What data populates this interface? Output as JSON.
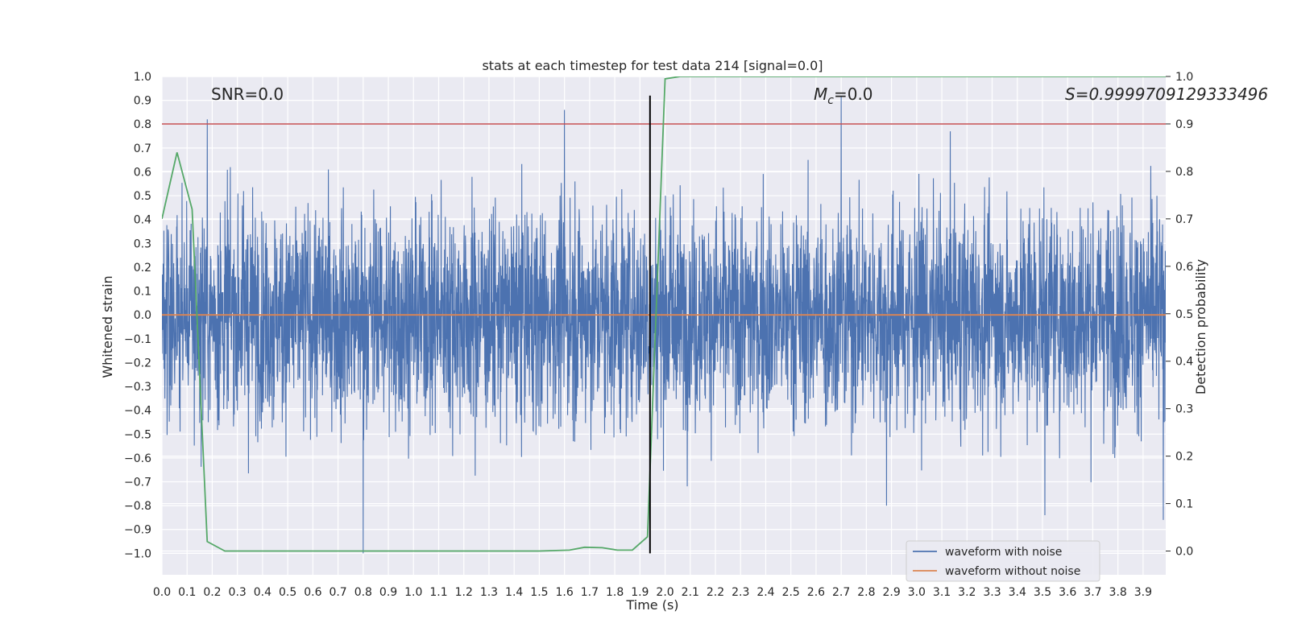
{
  "chart_data": {
    "type": "line",
    "title": "stats at each timestep for test data 214 [signal=0.0]",
    "xlabel": "Time (s)",
    "ylabel": "Whitened strain",
    "y2label": "Detection probability",
    "xlim": [
      0.0,
      3.99
    ],
    "ylim": [
      -1.09,
      1.0
    ],
    "y2lim": [
      -0.05,
      1.0
    ],
    "xticks": [
      "0.0",
      "0.1",
      "0.2",
      "0.3",
      "0.4",
      "0.5",
      "0.6",
      "0.7",
      "0.8",
      "0.9",
      "1.0",
      "1.1",
      "1.2",
      "1.3",
      "1.4",
      "1.5",
      "1.6",
      "1.7",
      "1.8",
      "1.9",
      "2.0",
      "2.1",
      "2.2",
      "2.3",
      "2.4",
      "2.5",
      "2.6",
      "2.7",
      "2.8",
      "2.9",
      "3.0",
      "3.1",
      "3.2",
      "3.3",
      "3.4",
      "3.5",
      "3.6",
      "3.7",
      "3.8",
      "3.9"
    ],
    "yticks": [
      "1.0",
      "0.9",
      "0.8",
      "0.7",
      "0.6",
      "0.5",
      "0.4",
      "0.3",
      "0.2",
      "0.1",
      "0.0",
      "−0.1",
      "−0.2",
      "−0.3",
      "−0.4",
      "−0.5",
      "−0.6",
      "−0.7",
      "−0.8",
      "−0.9",
      "−1.0"
    ],
    "y2ticks": [
      "1.0",
      "0.9",
      "0.8",
      "0.7",
      "0.6",
      "0.5",
      "0.4",
      "0.3",
      "0.2",
      "0.1",
      "0.0"
    ],
    "grid": true,
    "legend_position": "bottom-right",
    "series": [
      {
        "name": "waveform with noise",
        "axis": "left",
        "color": "#4c72b0",
        "description": "dense noise, roughly within [-0.9, 0.9]",
        "n_points": 4096,
        "amplitude_envelope": 0.45,
        "peaks": [
          {
            "x": 0.18,
            "y": 0.82
          },
          {
            "x": 0.8,
            "y": -1.0
          },
          {
            "x": 1.6,
            "y": 0.86
          },
          {
            "x": 2.7,
            "y": 0.92
          },
          {
            "x": 2.88,
            "y": -0.8
          },
          {
            "x": 3.51,
            "y": -0.84
          },
          {
            "x": 3.98,
            "y": -0.86
          }
        ]
      },
      {
        "name": "waveform without noise",
        "axis": "left",
        "color": "#dd8452",
        "x": [
          0.0,
          3.99
        ],
        "values": [
          0.0,
          0.0
        ]
      },
      {
        "name": "detection probability",
        "axis": "right",
        "color": "#55a868",
        "in_legend": false,
        "x": [
          0.0,
          0.06,
          0.12,
          0.18,
          0.25,
          0.31,
          0.37,
          1.5,
          1.62,
          1.68,
          1.75,
          1.81,
          1.87,
          1.93,
          2.0,
          2.06,
          3.99
        ],
        "values": [
          0.7,
          0.84,
          0.72,
          0.02,
          0.0,
          0.0,
          0.0,
          0.0,
          0.002,
          0.008,
          0.007,
          0.002,
          0.002,
          0.03,
          0.995,
          1.0,
          1.0
        ]
      }
    ],
    "threshold_line": {
      "axis": "right",
      "value": 0.9,
      "color": "#c44e52"
    },
    "vertical_line": {
      "x": 1.94,
      "y_from": -1.0,
      "y_to": 0.92,
      "color": "#000000"
    },
    "annotations": {
      "snr": "SNR=0.0",
      "mc_symbol": "M",
      "mc_sub": "c",
      "mc_value": "=0.0",
      "s_value": "S=0.9999709129333496"
    },
    "legend": [
      "waveform with noise",
      "waveform without noise"
    ]
  }
}
